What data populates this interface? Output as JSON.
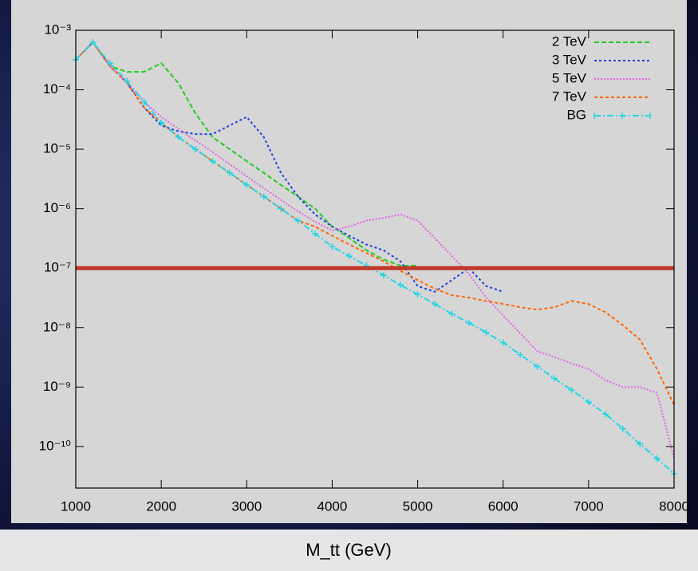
{
  "chart_data": {
    "type": "line",
    "x_label": "M_tt (GeV)",
    "log_y": true,
    "x": [
      1000,
      1200,
      1400,
      1600,
      1800,
      2000,
      2200,
      2400,
      2600,
      2800,
      3000,
      3200,
      3400,
      3600,
      3800,
      4000,
      4200,
      4400,
      4600,
      4800,
      5000,
      5200,
      5400,
      5600,
      5800,
      6000,
      6200,
      6400,
      6600,
      6800,
      7000,
      7200,
      7400,
      7600,
      7800,
      8000
    ],
    "series": [
      {
        "name": "2 TeV",
        "color": "#22cc22",
        "values": [
          0.00032,
          0.00063,
          0.00025,
          0.0002,
          0.0002,
          0.00028,
          0.00013,
          4e-05,
          1.6e-05,
          1e-05,
          6.3e-06,
          4e-06,
          2.5e-06,
          1.6e-06,
          1e-06,
          5e-07,
          3.2e-07,
          2e-07,
          1.4e-07,
          1.1e-07,
          1.1e-07,
          null,
          null,
          null,
          null,
          null,
          null,
          null,
          null,
          null,
          null,
          null,
          null,
          null,
          null,
          null
        ]
      },
      {
        "name": "3 TeV",
        "color": "#1f3fe0",
        "values": [
          0.00032,
          0.00063,
          0.00025,
          0.00013,
          5e-05,
          2.5e-05,
          2e-05,
          1.8e-05,
          1.8e-05,
          2.5e-05,
          3.5e-05,
          1.6e-05,
          4e-06,
          1.6e-06,
          8e-07,
          5e-07,
          3.5e-07,
          2.5e-07,
          2e-07,
          1.3e-07,
          5e-08,
          4e-08,
          6.3e-08,
          1e-07,
          5e-08,
          4e-08,
          null,
          null,
          null,
          null,
          null,
          null,
          null,
          null,
          null,
          null
        ]
      },
      {
        "name": "5 TeV",
        "color": "#e066e0",
        "values": [
          0.00032,
          0.00063,
          0.00025,
          0.00013,
          6.3e-05,
          3.5e-05,
          2.2e-05,
          1.4e-05,
          9e-06,
          5.6e-06,
          3.5e-06,
          2.2e-06,
          1.4e-06,
          9e-07,
          6e-07,
          4.3e-07,
          5e-07,
          6.3e-07,
          7e-07,
          8e-07,
          6.3e-07,
          3.2e-07,
          1.6e-07,
          8e-08,
          3.2e-08,
          1.6e-08,
          8e-09,
          4e-09,
          3.2e-09,
          2.5e-09,
          2e-09,
          1.3e-09,
          1e-09,
          1e-09,
          8e-10,
          6.3e-11
        ]
      },
      {
        "name": "7 TeV",
        "color": "#ff6600",
        "values": [
          0.00032,
          0.00063,
          0.00025,
          0.00013,
          5e-05,
          2.8e-05,
          1.6e-05,
          1e-05,
          6.3e-06,
          4e-06,
          2.5e-06,
          1.6e-06,
          1e-06,
          6.3e-07,
          5e-07,
          3.5e-07,
          2.5e-07,
          1.8e-07,
          1.3e-07,
          9e-08,
          6.3e-08,
          4.5e-08,
          3.5e-08,
          3.2e-08,
          2.8e-08,
          2.5e-08,
          2.2e-08,
          2e-08,
          2.2e-08,
          2.8e-08,
          2.5e-08,
          1.8e-08,
          1.1e-08,
          6.3e-09,
          2e-09,
          5e-10
        ]
      },
      {
        "name": "BG",
        "color": "#22d6e6",
        "marker": true,
        "values": [
          0.00032,
          0.00063,
          0.00028,
          0.00014,
          6.3e-05,
          2.8e-05,
          1.6e-05,
          1e-05,
          6.3e-06,
          4e-06,
          2.5e-06,
          1.6e-06,
          1e-06,
          6.3e-07,
          3.8e-07,
          2.3e-07,
          1.6e-07,
          1.1e-07,
          7.6e-08,
          5.2e-08,
          3.6e-08,
          2.5e-08,
          1.7e-08,
          1.2e-08,
          8.3e-09,
          5.6e-09,
          3.5e-09,
          2.2e-09,
          1.4e-09,
          8.9e-10,
          5.6e-10,
          3.5e-10,
          2e-10,
          1.1e-10,
          6.3e-11,
          3.5e-11
        ]
      }
    ],
    "reference_line": {
      "value": 1e-07,
      "color": "#c0392b"
    },
    "xlim": [
      1000,
      8000
    ],
    "xticks": [
      1000,
      2000,
      3000,
      4000,
      5000,
      6000,
      7000,
      8000
    ],
    "ylim": [
      2e-11,
      0.001
    ],
    "yticks": [
      {
        "value": 0.001,
        "label": "10⁻³"
      },
      {
        "value": 0.0001,
        "label": "10⁻⁴"
      },
      {
        "value": 1e-05,
        "label": "10⁻⁵"
      },
      {
        "value": 1e-06,
        "label": "10⁻⁶"
      },
      {
        "value": 1e-07,
        "label": "10⁻⁷"
      },
      {
        "value": 1e-08,
        "label": "10⁻⁸"
      },
      {
        "value": 1e-09,
        "label": "10⁻⁹"
      },
      {
        "value": 1e-10,
        "label": "10⁻¹⁰"
      }
    ],
    "legend": "top-right"
  }
}
